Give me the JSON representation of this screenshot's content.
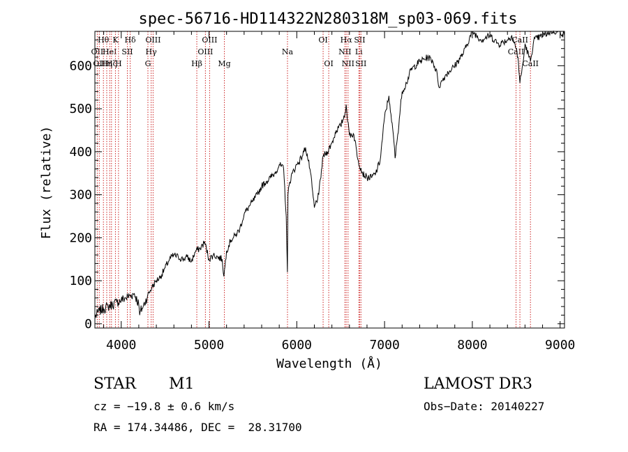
{
  "chart_data": {
    "type": "line",
    "title": "spec-56716-HD114322N280318M_sp03-069.fits",
    "xlabel": "Wavelength (Å)",
    "ylabel": "Flux (relative)",
    "xlim": [
      3700,
      9050
    ],
    "ylim": [
      -10,
      680
    ],
    "xticks": [
      4000,
      5000,
      6000,
      7000,
      8000,
      9000
    ],
    "yticks": [
      0,
      100,
      200,
      300,
      400,
      500,
      600
    ],
    "grid": false,
    "series": [
      {
        "name": "flux",
        "x": [
          3700,
          3750,
          3800,
          3850,
          3900,
          3950,
          4000,
          4050,
          4100,
          4150,
          4200,
          4210,
          4220,
          4250,
          4300,
          4350,
          4400,
          4450,
          4500,
          4550,
          4600,
          4650,
          4700,
          4750,
          4800,
          4850,
          4900,
          4950,
          5000,
          5050,
          5100,
          5150,
          5170,
          5200,
          5250,
          5300,
          5350,
          5400,
          5450,
          5500,
          5550,
          5600,
          5650,
          5700,
          5750,
          5800,
          5850,
          5880,
          5893,
          5900,
          5920,
          5950,
          6000,
          6050,
          6080,
          6100,
          6150,
          6200,
          6250,
          6300,
          6350,
          6400,
          6450,
          6500,
          6550,
          6563,
          6580,
          6600,
          6650,
          6700,
          6750,
          6800,
          6850,
          6900,
          6950,
          7000,
          7050,
          7060,
          7080,
          7100,
          7120,
          7150,
          7200,
          7250,
          7300,
          7400,
          7500,
          7550,
          7600,
          7620,
          7640,
          7660,
          7700,
          7800,
          7900,
          8000,
          8100,
          8200,
          8300,
          8400,
          8450,
          8498,
          8520,
          8542,
          8580,
          8600,
          8662,
          8700,
          8800,
          8900,
          9000,
          9050
        ],
        "y": [
          15,
          30,
          35,
          40,
          45,
          50,
          55,
          60,
          65,
          70,
          45,
          20,
          30,
          40,
          65,
          85,
          100,
          110,
          130,
          150,
          160,
          155,
          150,
          155,
          145,
          170,
          175,
          190,
          150,
          160,
          155,
          150,
          110,
          170,
          195,
          205,
          220,
          255,
          270,
          285,
          300,
          320,
          330,
          340,
          350,
          370,
          360,
          250,
          120,
          300,
          330,
          350,
          370,
          385,
          400,
          410,
          360,
          270,
          300,
          390,
          400,
          420,
          450,
          460,
          490,
          510,
          470,
          440,
          440,
          380,
          350,
          340,
          340,
          350,
          380,
          480,
          530,
          510,
          470,
          440,
          385,
          440,
          540,
          560,
          590,
          610,
          620,
          610,
          580,
          550,
          560,
          565,
          580,
          600,
          630,
          680,
          660,
          670,
          650,
          660,
          670,
          640,
          620,
          560,
          610,
          650,
          610,
          660,
          670,
          680,
          680,
          670
        ]
      }
    ],
    "line_markers": [
      {
        "wavelength": 3727,
        "label": "OII",
        "row": 2
      },
      {
        "wavelength": 3750,
        "label": "OII",
        "row": 3
      },
      {
        "wavelength": 3797,
        "label": "Hθ",
        "row": 1
      },
      {
        "wavelength": 3835,
        "label": "Hη",
        "row": 3
      },
      {
        "wavelength": 3869,
        "label": "HeI",
        "row": 2
      },
      {
        "wavelength": 3889,
        "label": "Hζ",
        "row": 3
      },
      {
        "wavelength": 3934,
        "label": "K",
        "row": 1
      },
      {
        "wavelength": 3969,
        "label": "H",
        "row": 3
      },
      {
        "wavelength": 4070,
        "label": "SII",
        "row": 2
      },
      {
        "wavelength": 4102,
        "label": "Hδ",
        "row": 1
      },
      {
        "wavelength": 4304,
        "label": "G",
        "row": 3
      },
      {
        "wavelength": 4341,
        "label": "Hγ",
        "row": 2
      },
      {
        "wavelength": 4363,
        "label": "OIII",
        "row": 1
      },
      {
        "wavelength": 4861,
        "label": "Hβ",
        "row": 3
      },
      {
        "wavelength": 4959,
        "label": "OIII",
        "row": 2
      },
      {
        "wavelength": 5007,
        "label": "OIII",
        "row": 1
      },
      {
        "wavelength": 5175,
        "label": "Mg",
        "row": 3
      },
      {
        "wavelength": 5894,
        "label": "Na",
        "row": 2
      },
      {
        "wavelength": 6300,
        "label": "OI",
        "row": 1
      },
      {
        "wavelength": 6364,
        "label": "OI",
        "row": 3
      },
      {
        "wavelength": 6548,
        "label": "NII",
        "row": 2
      },
      {
        "wavelength": 6563,
        "label": "Hα",
        "row": 1
      },
      {
        "wavelength": 6584,
        "label": "NII",
        "row": 3
      },
      {
        "wavelength": 6707,
        "label": "Li",
        "row": 2
      },
      {
        "wavelength": 6717,
        "label": "SII",
        "row": 1
      },
      {
        "wavelength": 6731,
        "label": "SII",
        "row": 3
      },
      {
        "wavelength": 8498,
        "label": "CaII",
        "row": 2
      },
      {
        "wavelength": 8542,
        "label": "CaII",
        "row": 1
      },
      {
        "wavelength": 8662,
        "label": "CaII",
        "row": 3
      }
    ]
  },
  "info": {
    "object_class": "STAR",
    "subclass": "M1",
    "survey": "LAMOST DR3",
    "cz": "cz = −19.8 ± 0.6 km/s",
    "obs_date": "Obs−Date: 20140227",
    "coords": "RA = 174.34486, DEC =  28.31700"
  }
}
